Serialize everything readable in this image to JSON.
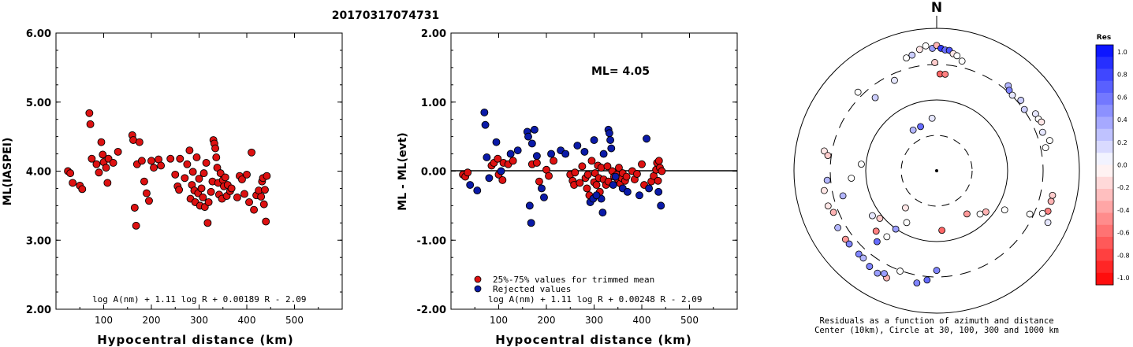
{
  "title": "20170317074731",
  "chart_data": [
    {
      "type": "scatter",
      "name": "left",
      "ylabel": "ML(IASPEI)",
      "xlabel": "Hypocentral distance (km)",
      "formula": "log A(nm) + 1.11 log R + 0.00189 R - 2.09",
      "xlim": [
        0,
        600
      ],
      "ylim": [
        2,
        6
      ],
      "xticks": [
        100,
        200,
        300,
        400,
        500
      ],
      "yticks": [
        2,
        3,
        4,
        5,
        6
      ],
      "ytick_labels": [
        "2.00",
        "3.00",
        "4.00",
        "5.00",
        "6.00"
      ],
      "point_color": "#dd1111",
      "points": [
        [
          25,
          4.0
        ],
        [
          30,
          3.97
        ],
        [
          35,
          3.83
        ],
        [
          50,
          3.79
        ],
        [
          55,
          3.74
        ],
        [
          70,
          4.84
        ],
        [
          72,
          4.68
        ],
        [
          75,
          4.18
        ],
        [
          85,
          4.1
        ],
        [
          90,
          3.98
        ],
        [
          95,
          4.42
        ],
        [
          98,
          4.24
        ],
        [
          100,
          4.13
        ],
        [
          105,
          4.05
        ],
        [
          108,
          3.83
        ],
        [
          110,
          4.18
        ],
        [
          120,
          4.12
        ],
        [
          130,
          4.28
        ],
        [
          160,
          4.52
        ],
        [
          162,
          4.45
        ],
        [
          165,
          3.47
        ],
        [
          168,
          3.21
        ],
        [
          170,
          4.1
        ],
        [
          175,
          4.42
        ],
        [
          180,
          4.15
        ],
        [
          185,
          3.85
        ],
        [
          190,
          3.68
        ],
        [
          195,
          3.57
        ],
        [
          200,
          4.15
        ],
        [
          205,
          4.05
        ],
        [
          215,
          4.17
        ],
        [
          220,
          4.08
        ],
        [
          240,
          4.18
        ],
        [
          250,
          3.95
        ],
        [
          255,
          3.78
        ],
        [
          258,
          3.73
        ],
        [
          260,
          4.18
        ],
        [
          270,
          3.9
        ],
        [
          275,
          4.1
        ],
        [
          280,
          4.3
        ],
        [
          282,
          3.6
        ],
        [
          285,
          3.8
        ],
        [
          287,
          3.99
        ],
        [
          290,
          3.72
        ],
        [
          292,
          3.55
        ],
        [
          295,
          4.2
        ],
        [
          298,
          3.68
        ],
        [
          300,
          3.89
        ],
        [
          302,
          3.5
        ],
        [
          305,
          3.75
        ],
        [
          308,
          3.62
        ],
        [
          310,
          3.97
        ],
        [
          312,
          3.48
        ],
        [
          315,
          4.12
        ],
        [
          318,
          3.25
        ],
        [
          320,
          3.55
        ],
        [
          325,
          3.7
        ],
        [
          328,
          3.85
        ],
        [
          330,
          4.45
        ],
        [
          332,
          4.4
        ],
        [
          334,
          4.33
        ],
        [
          336,
          4.2
        ],
        [
          338,
          4.05
        ],
        [
          340,
          3.83
        ],
        [
          342,
          3.66
        ],
        [
          345,
          3.97
        ],
        [
          348,
          3.6
        ],
        [
          350,
          3.87
        ],
        [
          352,
          3.78
        ],
        [
          355,
          3.91
        ],
        [
          358,
          3.64
        ],
        [
          360,
          3.8
        ],
        [
          365,
          3.71
        ],
        [
          368,
          3.75
        ],
        [
          380,
          3.62
        ],
        [
          385,
          3.93
        ],
        [
          390,
          3.88
        ],
        [
          395,
          3.67
        ],
        [
          400,
          3.95
        ],
        [
          405,
          3.55
        ],
        [
          410,
          4.27
        ],
        [
          415,
          3.44
        ],
        [
          420,
          3.65
        ],
        [
          425,
          3.72
        ],
        [
          430,
          3.63
        ],
        [
          432,
          3.85
        ],
        [
          434,
          3.9
        ],
        [
          436,
          3.52
        ],
        [
          438,
          3.73
        ],
        [
          440,
          3.27
        ],
        [
          442,
          3.93
        ]
      ]
    },
    {
      "type": "scatter",
      "name": "middle",
      "ylabel": "ML - ML(evt)",
      "xlabel": "Hypocentral distance (km)",
      "formula": "log A(nm) + 1.11 log R + 0.00248 R - 2.09",
      "ml_label": "ML= 4.05",
      "xlim": [
        0,
        600
      ],
      "ylim": [
        -2,
        2
      ],
      "xticks": [
        100,
        200,
        300,
        400,
        500
      ],
      "yticks": [
        -2,
        -1,
        0,
        1,
        2
      ],
      "ytick_labels": [
        "-2.00",
        "-1.00",
        "0.00",
        "1.00",
        "2.00"
      ],
      "legend": [
        {
          "label": "25%-75% values for trimmed mean",
          "color": "#dd1111"
        },
        {
          "label": "Rejected values",
          "color": "#0a1aa8"
        }
      ],
      "red_points": [
        [
          25,
          -0.05
        ],
        [
          30,
          -0.08
        ],
        [
          35,
          -0.02
        ],
        [
          85,
          0.08
        ],
        [
          90,
          0.12
        ],
        [
          98,
          0.18
        ],
        [
          100,
          -0.05
        ],
        [
          108,
          -0.13
        ],
        [
          110,
          0.12
        ],
        [
          120,
          0.1
        ],
        [
          130,
          0.15
        ],
        [
          170,
          0.1
        ],
        [
          180,
          0.12
        ],
        [
          185,
          -0.15
        ],
        [
          200,
          0.02
        ],
        [
          205,
          -0.07
        ],
        [
          215,
          0.15
        ],
        [
          250,
          -0.05
        ],
        [
          255,
          -0.14
        ],
        [
          258,
          -0.2
        ],
        [
          260,
          -0.02
        ],
        [
          270,
          -0.17
        ],
        [
          275,
          0.07
        ],
        [
          282,
          -0.1
        ],
        [
          285,
          -0.25
        ],
        [
          287,
          -0.05
        ],
        [
          290,
          -0.35
        ],
        [
          295,
          0.15
        ],
        [
          300,
          -0.16
        ],
        [
          302,
          -0.03
        ],
        [
          305,
          -0.2
        ],
        [
          308,
          0.08
        ],
        [
          310,
          -0.1
        ],
        [
          312,
          -0.3
        ],
        [
          315,
          0.05
        ],
        [
          320,
          -0.12
        ],
        [
          325,
          -0.2
        ],
        [
          328,
          0.07
        ],
        [
          330,
          -0.15
        ],
        [
          338,
          0.0
        ],
        [
          342,
          -0.08
        ],
        [
          348,
          -0.05
        ],
        [
          350,
          -0.12
        ],
        [
          352,
          0.05
        ],
        [
          355,
          -0.18
        ],
        [
          358,
          -0.1
        ],
        [
          360,
          -0.03
        ],
        [
          365,
          -0.14
        ],
        [
          368,
          -0.08
        ],
        [
          380,
          0.0
        ],
        [
          385,
          -0.12
        ],
        [
          390,
          -0.04
        ],
        [
          400,
          0.1
        ],
        [
          405,
          -0.2
        ],
        [
          420,
          -0.15
        ],
        [
          425,
          -0.07
        ],
        [
          430,
          0.02
        ],
        [
          432,
          0.12
        ],
        [
          434,
          -0.14
        ],
        [
          436,
          0.15
        ],
        [
          438,
          0.05
        ],
        [
          442,
          0.0
        ]
      ],
      "blue_points": [
        [
          40,
          -0.2
        ],
        [
          55,
          -0.28
        ],
        [
          70,
          0.85
        ],
        [
          72,
          0.67
        ],
        [
          75,
          0.2
        ],
        [
          80,
          -0.1
        ],
        [
          95,
          0.42
        ],
        [
          105,
          0.0
        ],
        [
          125,
          0.25
        ],
        [
          140,
          0.3
        ],
        [
          160,
          0.57
        ],
        [
          162,
          0.5
        ],
        [
          165,
          -0.5
        ],
        [
          168,
          -0.75
        ],
        [
          170,
          0.4
        ],
        [
          175,
          0.6
        ],
        [
          180,
          0.22
        ],
        [
          190,
          -0.25
        ],
        [
          195,
          -0.38
        ],
        [
          210,
          0.25
        ],
        [
          230,
          0.3
        ],
        [
          240,
          0.25
        ],
        [
          265,
          0.37
        ],
        [
          280,
          0.28
        ],
        [
          292,
          -0.45
        ],
        [
          298,
          -0.4
        ],
        [
          300,
          0.45
        ],
        [
          318,
          -0.6
        ],
        [
          320,
          0.25
        ],
        [
          330,
          0.6
        ],
        [
          332,
          0.55
        ],
        [
          334,
          0.45
        ],
        [
          336,
          0.33
        ],
        [
          340,
          -0.2
        ],
        [
          345,
          -0.08
        ],
        [
          360,
          -0.25
        ],
        [
          370,
          -0.3
        ],
        [
          395,
          -0.35
        ],
        [
          410,
          0.47
        ],
        [
          415,
          -0.25
        ],
        [
          440,
          -0.5
        ],
        [
          435,
          -0.3
        ],
        [
          315,
          -0.4
        ],
        [
          305,
          -0.35
        ]
      ]
    },
    {
      "type": "polar",
      "name": "right",
      "north_label": "N",
      "caption_line1": "Residuals as a function of azimuth and distance",
      "caption_line2": "Center (10km), Circle at 30, 100, 300 and 1000 km",
      "colorbar_title": "Res",
      "colorbar_ticks": [
        "1.0",
        "0.8",
        "0.6",
        "0.4",
        "0.2",
        "0.0",
        "-0.2",
        "-0.4",
        "-0.6",
        "-0.8",
        "-1.0"
      ],
      "points": [
        [
          -30,
          0.33,
          0.3
        ],
        [
          -20,
          0.33,
          0.6
        ],
        [
          -5,
          0.37,
          0.1
        ],
        [
          -140,
          0.34,
          -0.1
        ],
        [
          -150,
          0.42,
          0.0
        ],
        [
          -145,
          0.5,
          0.4
        ],
        [
          135,
          0.43,
          0.0
        ],
        [
          130,
          0.45,
          -0.3
        ],
        [
          145,
          0.37,
          -0.4
        ],
        [
          175,
          0.42,
          -0.6
        ],
        [
          105,
          0.83,
          -0.3
        ],
        [
          110,
          0.83,
          -0.5
        ],
        [
          112,
          0.8,
          0.0
        ],
        [
          102,
          0.83,
          -0.2
        ],
        [
          115,
          0.86,
          0.1
        ],
        [
          -15,
          0.82,
          0.0
        ],
        [
          -12,
          0.83,
          0.2
        ],
        [
          -8,
          0.86,
          -0.1
        ],
        [
          -5,
          0.88,
          0.0
        ],
        [
          -2,
          0.86,
          0.4
        ],
        [
          0,
          0.88,
          -0.3
        ],
        [
          2,
          0.86,
          0.8
        ],
        [
          4,
          0.85,
          0.6
        ],
        [
          6,
          0.85,
          0.7
        ],
        [
          8,
          0.83,
          -0.1
        ],
        [
          10,
          0.82,
          0.0
        ],
        [
          13,
          0.79,
          0.0
        ],
        [
          2,
          0.68,
          -0.6
        ],
        [
          5,
          0.68,
          -0.5
        ],
        [
          -1,
          0.76,
          -0.2
        ],
        [
          -25,
          0.7,
          0.1
        ],
        [
          -40,
          0.67,
          0.2
        ],
        [
          -45,
          0.78,
          0.0
        ],
        [
          40,
          0.78,
          0.3
        ],
        [
          42,
          0.76,
          0.5
        ],
        [
          45,
          0.75,
          0.1
        ],
        [
          50,
          0.77,
          0.2
        ],
        [
          55,
          0.75,
          0.2
        ],
        [
          60,
          0.8,
          0.1
        ],
        [
          63,
          0.8,
          0.0
        ],
        [
          65,
          0.81,
          -0.1
        ],
        [
          75,
          0.82,
          0.0
        ],
        [
          78,
          0.78,
          0.0
        ],
        [
          70,
          0.79,
          0.1
        ],
        [
          -80,
          0.8,
          -0.1
        ],
        [
          -82,
          0.77,
          -0.2
        ],
        [
          -95,
          0.77,
          0.3
        ],
        [
          -100,
          0.8,
          -0.1
        ],
        [
          -108,
          0.8,
          -0.1
        ],
        [
          -112,
          0.78,
          -0.3
        ],
        [
          -120,
          0.8,
          0.3
        ],
        [
          -127,
          0.8,
          -0.4
        ],
        [
          -130,
          0.8,
          0.5
        ],
        [
          -137,
          0.8,
          0.5
        ],
        [
          -140,
          0.8,
          0.3
        ],
        [
          -145,
          0.82,
          0.5
        ],
        [
          -150,
          0.83,
          0.4
        ],
        [
          -155,
          0.83,
          -0.3
        ],
        [
          -153,
          0.81,
          0.4
        ],
        [
          -160,
          0.75,
          0.0
        ],
        [
          -170,
          0.8,
          0.5
        ],
        [
          -175,
          0.77,
          0.6
        ],
        [
          -180,
          0.7,
          0.5
        ],
        [
          -95,
          0.6,
          0.0
        ],
        [
          -85,
          0.53,
          0.0
        ],
        [
          -130,
          0.52,
          -0.2
        ],
        [
          -125,
          0.55,
          0.1
        ],
        [
          -135,
          0.6,
          -0.5
        ],
        [
          -140,
          0.65,
          0.6
        ],
        [
          -143,
          0.58,
          0.0
        ],
        [
          115,
          0.72,
          0.0
        ],
        [
          120,
          0.55,
          0.0
        ],
        [
          -105,
          0.68,
          0.3
        ]
      ]
    }
  ]
}
